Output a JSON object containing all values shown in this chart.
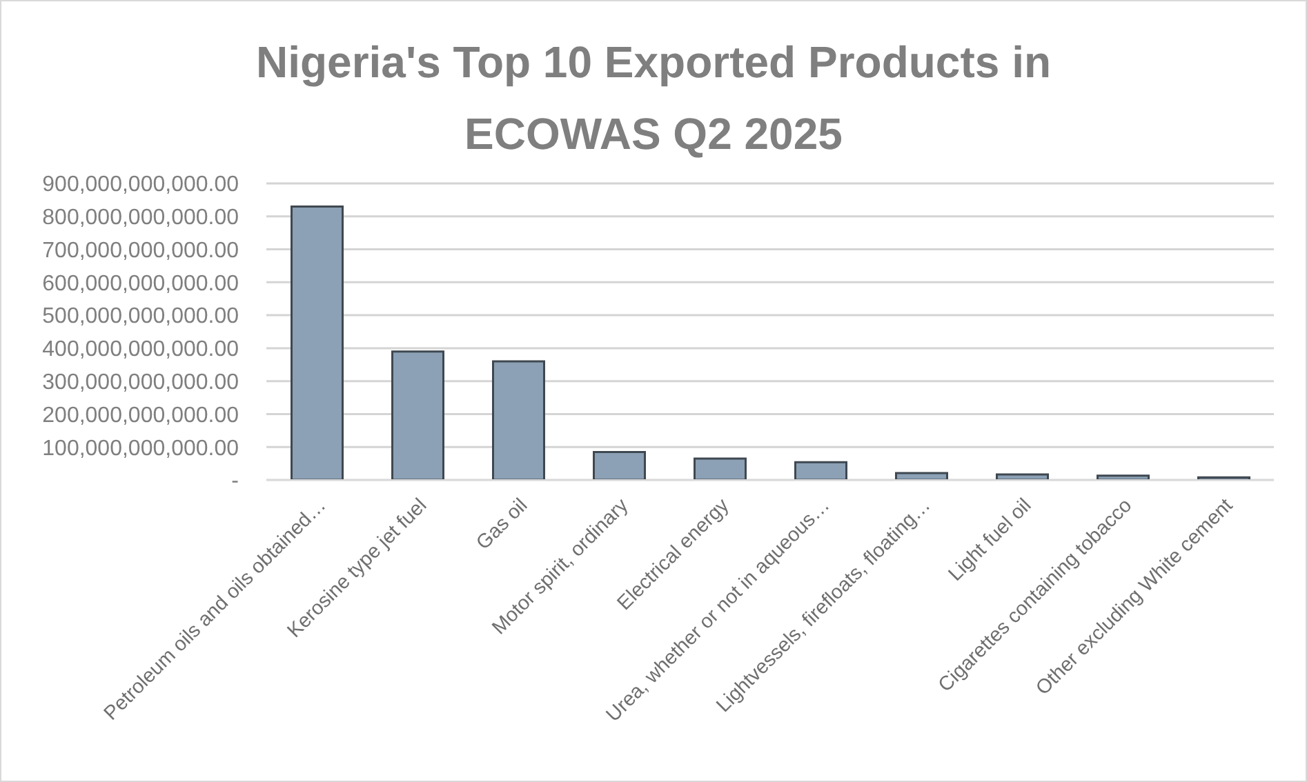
{
  "chart_data": {
    "type": "bar",
    "title": "Nigeria's Top 10 Exported Products in ECOWAS Q2 2025",
    "categories": [
      "Petroleum oils and oils obtained…",
      "Kerosine type jet fuel",
      "Gas oil",
      "Motor spirit, ordinary",
      "Electrical energy",
      "Urea, whether or not in aqueous…",
      "Lightvessels, firefloats, floating…",
      "Light fuel oil",
      "Cigarettes containing tobacco",
      "Other excluding White cement"
    ],
    "values": [
      830000000000,
      390000000000,
      360000000000,
      85000000000,
      65000000000,
      54000000000,
      21000000000,
      17000000000,
      13000000000,
      8000000000
    ],
    "color": "#8ca1b5",
    "ylim": [
      0,
      900000000000
    ],
    "yticks": [
      {
        "value": 0,
        "label": "-"
      },
      {
        "value": 100000000000,
        "label": "100,000,000,000.00"
      },
      {
        "value": 200000000000,
        "label": "200,000,000,000.00"
      },
      {
        "value": 300000000000,
        "label": "300,000,000,000.00"
      },
      {
        "value": 400000000000,
        "label": "400,000,000,000.00"
      },
      {
        "value": 500000000000,
        "label": "500,000,000,000.00"
      },
      {
        "value": 600000000000,
        "label": "600,000,000,000.00"
      },
      {
        "value": 700000000000,
        "label": "700,000,000,000.00"
      },
      {
        "value": 800000000000,
        "label": "800,000,000,000.00"
      },
      {
        "value": 900000000000,
        "label": "900,000,000,000.00"
      }
    ],
    "grid": "y"
  }
}
